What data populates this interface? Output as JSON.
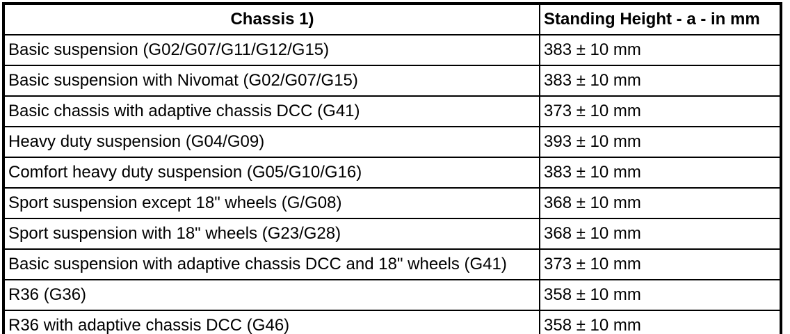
{
  "document": {
    "colors": {
      "text": "#000000",
      "border": "#000000",
      "background": "#ffffff"
    },
    "table": {
      "header": {
        "chassis": "Chassis 1)",
        "standing_height": "Standing Height - a - in mm"
      },
      "rows": [
        {
          "chassis": "Basic suspension (G02/G07/G11/G12/G15)",
          "standing_height": "383 ± 10 mm"
        },
        {
          "chassis": "Basic suspension with Nivomat (G02/G07/G15)",
          "standing_height": "383 ± 10 mm"
        },
        {
          "chassis": "Basic chassis with adaptive chassis DCC (G41)",
          "standing_height": "373 ± 10 mm"
        },
        {
          "chassis": "Heavy duty suspension (G04/G09)",
          "standing_height": "393 ± 10 mm"
        },
        {
          "chassis": "Comfort heavy duty suspension (G05/G10/G16)",
          "standing_height": "383 ± 10 mm"
        },
        {
          "chassis": "Sport suspension except 18\" wheels (G/G08)",
          "standing_height": "368 ± 10 mm"
        },
        {
          "chassis": "Sport suspension with 18\" wheels (G23/G28)",
          "standing_height": "368 ± 10 mm"
        },
        {
          "chassis": "Basic suspension with adaptive chassis DCC and 18\" wheels (G41)",
          "standing_height": "373 ± 10 mm"
        },
        {
          "chassis": "R36 (G36)",
          "standing_height": "358 ± 10 mm"
        },
        {
          "chassis": "R36 with adaptive chassis DCC (G46)",
          "standing_height": "358 ± 10 mm"
        }
      ]
    }
  }
}
